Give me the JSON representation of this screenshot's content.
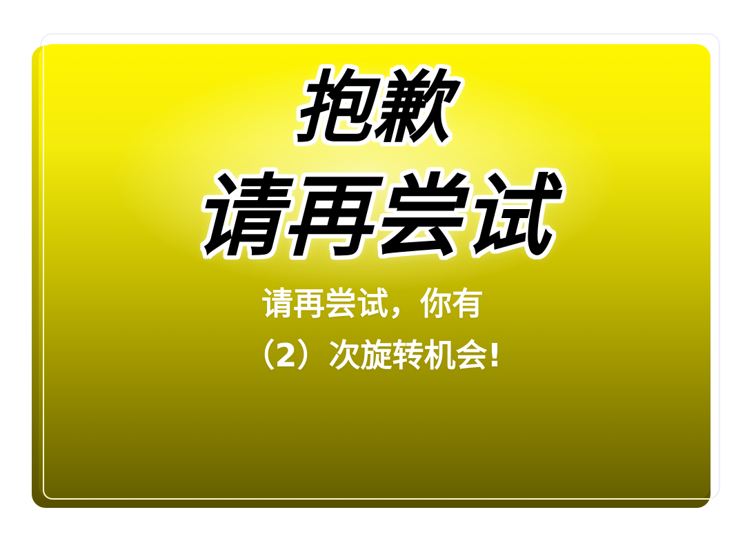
{
  "dialog": {
    "headline_line1": "抱歉",
    "headline_line2": "请再尝试",
    "message_line1": "请再尝试，你有",
    "message_line2": "（2）次旋转机会!"
  },
  "colors": {
    "card_top": "#fff600",
    "card_bottom": "#665f00",
    "headline_text": "#000000",
    "headline_outline": "#ffffff",
    "message_text": "#ffffff"
  }
}
